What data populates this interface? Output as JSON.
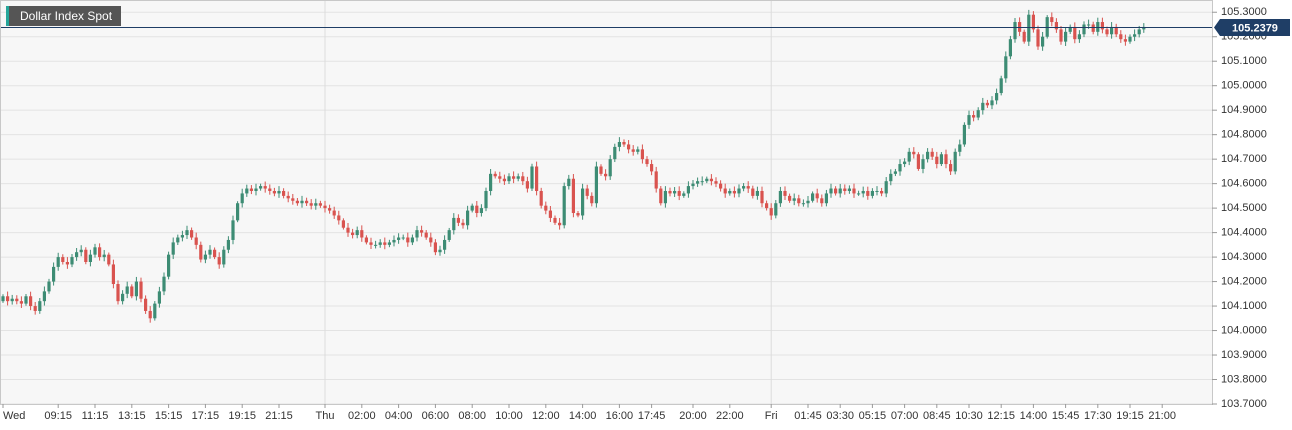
{
  "chart_data": {
    "type": "candlestick",
    "title": "Dollar Index Spot",
    "last_price": "105.2379",
    "colors": {
      "up": "#3d8c74",
      "down": "#d9534f",
      "last_price_line": "#1f3e66",
      "last_price_badge": "#1f3e66",
      "grid": "#e3e3e3",
      "plot_background": "#f7f7f7"
    },
    "ylim": [
      103.7,
      105.35
    ],
    "y_ticks": [
      "105.3000",
      "105.2000",
      "105.1000",
      "105.0000",
      "104.9000",
      "104.8000",
      "104.7000",
      "104.6000",
      "104.5000",
      "104.4000",
      "104.3000",
      "104.2000",
      "104.1000",
      "104.0000",
      "103.9000",
      "103.8000",
      "103.7000"
    ],
    "x_ticks": [
      {
        "label": "Wed",
        "bar": 0
      },
      {
        "label": "09:15",
        "bar": 12
      },
      {
        "label": "11:15",
        "bar": 20
      },
      {
        "label": "13:15",
        "bar": 28
      },
      {
        "label": "15:15",
        "bar": 36
      },
      {
        "label": "17:15",
        "bar": 44
      },
      {
        "label": "19:15",
        "bar": 52
      },
      {
        "label": "21:15",
        "bar": 60
      },
      {
        "label": "Thu",
        "bar": 70
      },
      {
        "label": "02:00",
        "bar": 78
      },
      {
        "label": "04:00",
        "bar": 86
      },
      {
        "label": "06:00",
        "bar": 94
      },
      {
        "label": "08:00",
        "bar": 102
      },
      {
        "label": "10:00",
        "bar": 110
      },
      {
        "label": "12:00",
        "bar": 118
      },
      {
        "label": "14:00",
        "bar": 126
      },
      {
        "label": "16:00",
        "bar": 134
      },
      {
        "label": "17:45",
        "bar": 141
      },
      {
        "label": "20:00",
        "bar": 150
      },
      {
        "label": "22:00",
        "bar": 158
      },
      {
        "label": "Fri",
        "bar": 167
      },
      {
        "label": "01:45",
        "bar": 175
      },
      {
        "label": "03:30",
        "bar": 182
      },
      {
        "label": "05:15",
        "bar": 189
      },
      {
        "label": "07:00",
        "bar": 196
      },
      {
        "label": "08:45",
        "bar": 203
      },
      {
        "label": "10:30",
        "bar": 210
      },
      {
        "label": "12:15",
        "bar": 217
      },
      {
        "label": "14:00",
        "bar": 224
      },
      {
        "label": "15:45",
        "bar": 231
      },
      {
        "label": "17:30",
        "bar": 238
      },
      {
        "label": "19:15",
        "bar": 245
      },
      {
        "label": "21:00",
        "bar": 252
      }
    ],
    "close": [
      104.14,
      104.12,
      104.13,
      104.12,
      104.11,
      104.14,
      104.1,
      104.08,
      104.12,
      104.16,
      104.2,
      104.26,
      104.3,
      104.28,
      104.27,
      104.3,
      104.32,
      104.33,
      104.28,
      104.31,
      104.34,
      104.3,
      104.31,
      104.27,
      104.19,
      104.12,
      104.15,
      104.18,
      104.14,
      104.2,
      104.13,
      104.08,
      104.05,
      104.11,
      104.16,
      104.22,
      104.31,
      104.36,
      104.38,
      104.39,
      104.41,
      104.38,
      104.35,
      104.29,
      104.31,
      104.33,
      104.3,
      104.27,
      104.33,
      104.37,
      104.45,
      104.52,
      104.56,
      104.58,
      104.57,
      104.58,
      104.59,
      104.58,
      104.57,
      104.56,
      104.57,
      104.55,
      104.54,
      104.53,
      104.52,
      104.53,
      104.52,
      104.51,
      104.52,
      104.51,
      104.5,
      104.49,
      104.47,
      104.45,
      104.42,
      104.4,
      104.39,
      104.41,
      104.38,
      104.36,
      104.35,
      104.35,
      104.36,
      104.35,
      104.36,
      104.37,
      104.38,
      104.38,
      104.36,
      104.38,
      104.41,
      104.4,
      104.38,
      104.36,
      104.32,
      104.33,
      104.37,
      104.41,
      104.46,
      104.44,
      104.43,
      104.49,
      104.51,
      104.48,
      104.5,
      104.57,
      104.64,
      104.63,
      104.62,
      104.61,
      104.63,
      104.62,
      104.63,
      104.61,
      104.58,
      104.67,
      104.57,
      104.51,
      104.49,
      104.46,
      104.44,
      104.43,
      104.59,
      104.62,
      104.48,
      104.47,
      104.58,
      104.55,
      104.52,
      104.67,
      104.64,
      104.63,
      104.7,
      104.75,
      104.77,
      104.76,
      104.74,
      104.73,
      104.74,
      104.7,
      104.68,
      104.65,
      104.58,
      104.52,
      104.57,
      104.56,
      104.57,
      104.55,
      104.56,
      104.59,
      104.6,
      104.61,
      104.61,
      104.62,
      104.61,
      104.6,
      104.58,
      104.56,
      104.57,
      104.56,
      104.58,
      104.59,
      104.58,
      104.55,
      104.57,
      104.52,
      104.5,
      104.47,
      104.52,
      104.57,
      104.55,
      104.53,
      104.54,
      104.52,
      104.52,
      104.53,
      104.56,
      104.54,
      104.52,
      104.56,
      104.58,
      104.56,
      104.58,
      104.57,
      104.58,
      104.56,
      104.56,
      104.57,
      104.55,
      104.57,
      104.57,
      104.56,
      104.61,
      104.64,
      104.65,
      104.68,
      104.69,
      104.73,
      104.72,
      104.66,
      104.7,
      104.73,
      104.71,
      104.68,
      104.72,
      104.68,
      104.65,
      104.73,
      104.76,
      104.84,
      104.88,
      104.87,
      104.9,
      104.93,
      104.92,
      104.94,
      104.97,
      105.03,
      105.12,
      105.19,
      105.26,
      105.22,
      105.18,
      105.29,
      105.23,
      105.16,
      105.2,
      105.28,
      105.26,
      105.23,
      105.18,
      105.22,
      105.24,
      105.19,
      105.21,
      105.25,
      105.25,
      105.22,
      105.26,
      105.23,
      105.21,
      105.24,
      105.21,
      105.19,
      105.18,
      105.2,
      105.21,
      105.23,
      105.24
    ]
  }
}
